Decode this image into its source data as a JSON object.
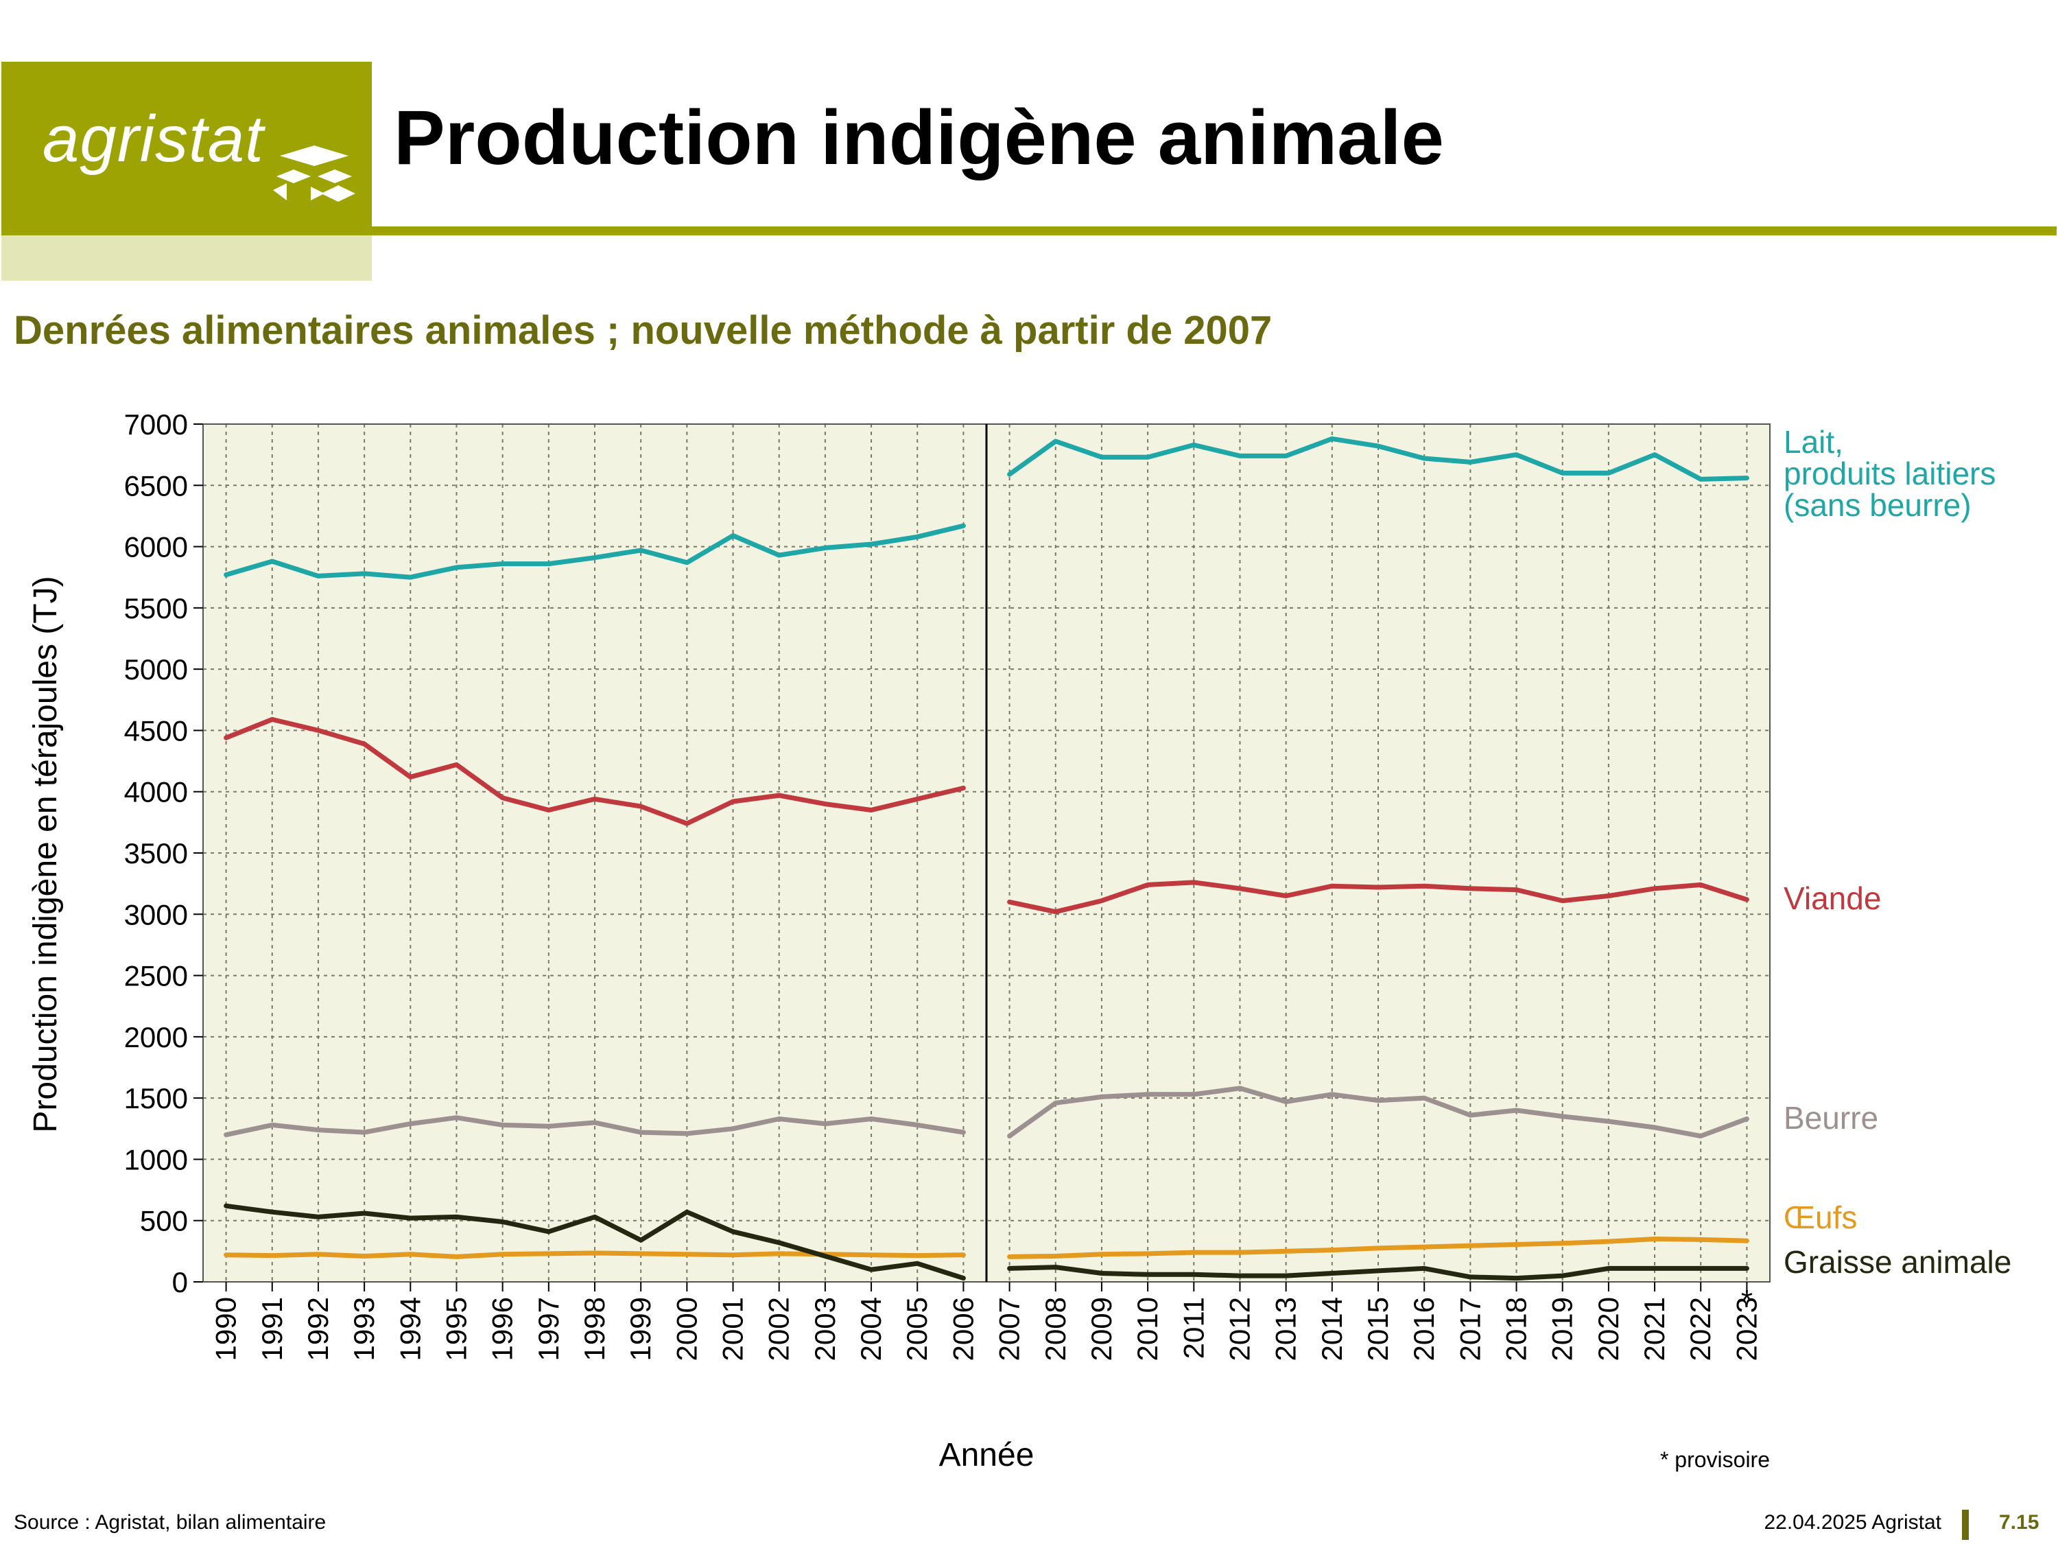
{
  "header": {
    "logo_text": "agristat",
    "title": "Production indigène animale"
  },
  "subtitle": "Denrées alimentaires animales ; nouvelle méthode à partir de 2007",
  "footer": {
    "source": "Source : Agristat, bilan alimentaire",
    "date": "22.04.2025 Agristat",
    "page": "7.15"
  },
  "colors": {
    "brand": "#9ca302",
    "brand_light": "#e3e6b6",
    "subtitle": "#6a6a10",
    "plot_bg": "#f3f3e2"
  },
  "chart_data": {
    "type": "line",
    "xlabel": "Année",
    "ylabel": "Production indigène en térajoules (TJ)",
    "ylim": [
      0,
      7000
    ],
    "yticks": [
      0,
      500,
      1000,
      1500,
      2000,
      2500,
      3000,
      3500,
      4000,
      4500,
      5000,
      5500,
      6000,
      6500,
      7000
    ],
    "categories": [
      "1990",
      "1991",
      "1992",
      "1993",
      "1994",
      "1995",
      "1996",
      "1997",
      "1998",
      "1999",
      "2000",
      "2001",
      "2002",
      "2003",
      "2004",
      "2005",
      "2006",
      "2007",
      "2008",
      "2009",
      "2010",
      "2011",
      "2012",
      "2013",
      "2014",
      "2015",
      "2016",
      "2017",
      "2018",
      "2019",
      "2020",
      "2021",
      "2022",
      "2023"
    ],
    "method_break_after": "2006",
    "provisional_mark": "*",
    "footnote": "* provisoire",
    "grid": true,
    "legend_position": "right",
    "series": [
      {
        "name": "Lait, produits laitiers (sans beurre)",
        "label_lines": [
          "Lait,",
          "produits laitiers",
          "(sans beurre)"
        ],
        "color": "#1fa6a6",
        "values": [
          5770,
          5880,
          5760,
          5780,
          5750,
          5830,
          5860,
          5860,
          5910,
          5970,
          5870,
          6090,
          5930,
          5990,
          6020,
          6080,
          6170,
          6590,
          6860,
          6730,
          6730,
          6830,
          6740,
          6740,
          6880,
          6820,
          6720,
          6690,
          6750,
          6600,
          6600,
          6750,
          6550,
          6560
        ]
      },
      {
        "name": "Viande",
        "label_lines": [
          "Viande"
        ],
        "color": "#c0393f",
        "values": [
          4440,
          4590,
          4500,
          4390,
          4120,
          4220,
          3950,
          3850,
          3940,
          3880,
          3740,
          3920,
          3970,
          3900,
          3850,
          3940,
          4030,
          3100,
          3020,
          3110,
          3240,
          3260,
          3210,
          3150,
          3230,
          3220,
          3230,
          3210,
          3200,
          3110,
          3150,
          3210,
          3240,
          3120
        ]
      },
      {
        "name": "Beurre",
        "label_lines": [
          "Beurre"
        ],
        "color": "#9c9090",
        "values": [
          1200,
          1280,
          1240,
          1220,
          1290,
          1340,
          1280,
          1270,
          1300,
          1220,
          1210,
          1250,
          1330,
          1290,
          1330,
          1280,
          1220,
          1190,
          1460,
          1510,
          1530,
          1530,
          1580,
          1470,
          1530,
          1480,
          1500,
          1360,
          1400,
          1350,
          1310,
          1260,
          1190,
          1330
        ]
      },
      {
        "name": "Œufs",
        "label_lines": [
          "Œufs"
        ],
        "color": "#e39a1f",
        "values": [
          220,
          215,
          225,
          210,
          225,
          205,
          225,
          230,
          235,
          230,
          225,
          220,
          230,
          225,
          220,
          215,
          220,
          205,
          210,
          225,
          230,
          240,
          240,
          250,
          260,
          275,
          285,
          295,
          305,
          315,
          330,
          350,
          345,
          335
        ]
      },
      {
        "name": "Graisse animale",
        "label_lines": [
          "Graisse animale"
        ],
        "color": "#23280f",
        "values": [
          620,
          570,
          530,
          560,
          520,
          530,
          490,
          410,
          530,
          340,
          570,
          410,
          320,
          210,
          100,
          150,
          30,
          110,
          120,
          70,
          60,
          60,
          50,
          50,
          70,
          90,
          110,
          40,
          30,
          50,
          110,
          110,
          110,
          110
        ]
      }
    ]
  }
}
